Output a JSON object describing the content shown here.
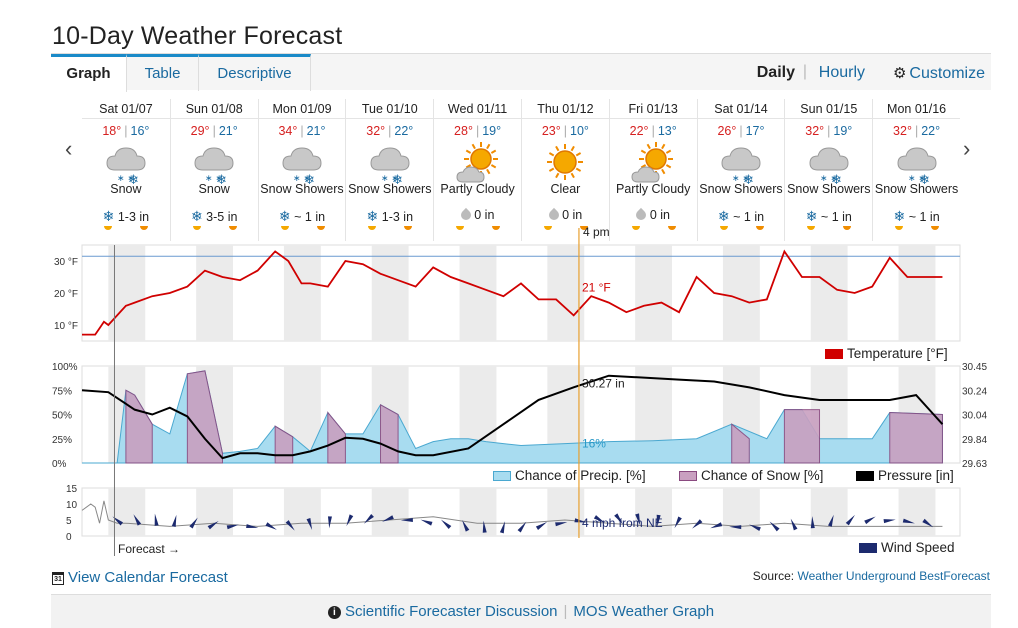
{
  "page": {
    "title": "10-Day Weather Forecast"
  },
  "tabs": [
    {
      "label": "Graph",
      "active": true
    },
    {
      "label": "Table",
      "active": false
    },
    {
      "label": "Descriptive",
      "active": false
    }
  ],
  "view_toggle": {
    "daily": "Daily",
    "separator": "|",
    "hourly": "Hourly",
    "customize": "Customize"
  },
  "days": [
    {
      "date": "Sat 01/07",
      "hi": "18°",
      "lo": "16°",
      "icon": "snow-icon",
      "cond": "Snow",
      "precip_icon": "snowflake-icon",
      "precip": "1-3 in"
    },
    {
      "date": "Sun 01/08",
      "hi": "29°",
      "lo": "21°",
      "icon": "snow-icon",
      "cond": "Snow",
      "precip_icon": "snowflake-icon",
      "precip": "3-5 in"
    },
    {
      "date": "Mon 01/09",
      "hi": "34°",
      "lo": "21°",
      "icon": "snow-icon",
      "cond": "Snow Showers",
      "precip_icon": "snowflake-icon",
      "precip": "~ 1 in"
    },
    {
      "date": "Tue 01/10",
      "hi": "32°",
      "lo": "22°",
      "icon": "snow-icon",
      "cond": "Snow Showers",
      "precip_icon": "snowflake-icon",
      "precip": "1-3 in"
    },
    {
      "date": "Wed 01/11",
      "hi": "28°",
      "lo": "19°",
      "icon": "partly-cloudy-icon",
      "cond": "Partly Cloudy",
      "precip_icon": "raindrop-icon",
      "precip": "0 in"
    },
    {
      "date": "Thu 01/12",
      "hi": "23°",
      "lo": "10°",
      "icon": "sun-icon",
      "cond": "Clear",
      "precip_icon": "raindrop-icon",
      "precip": "0 in"
    },
    {
      "date": "Fri 01/13",
      "hi": "22°",
      "lo": "13°",
      "icon": "partly-cloudy-icon",
      "cond": "Partly Cloudy",
      "precip_icon": "raindrop-icon",
      "precip": "0 in"
    },
    {
      "date": "Sat 01/14",
      "hi": "26°",
      "lo": "17°",
      "icon": "snow-icon",
      "cond": "Snow Showers",
      "precip_icon": "snowflake-icon",
      "precip": "~ 1 in"
    },
    {
      "date": "Sun 01/15",
      "hi": "32°",
      "lo": "19°",
      "icon": "snow-icon",
      "cond": "Snow Showers",
      "precip_icon": "snowflake-icon",
      "precip": "~ 1 in"
    },
    {
      "date": "Mon 01/16",
      "hi": "32°",
      "lo": "22°",
      "icon": "snow-icon",
      "cond": "Snow Showers",
      "precip_icon": "snowflake-icon",
      "precip": "~ 1 in"
    }
  ],
  "chart_data": [
    {
      "type": "line",
      "title": "",
      "x_unit": "day index (0 = Sat 01/07 00:00)",
      "ylim": [
        5,
        35
      ],
      "yticks": [
        "30 °F",
        "20 °F",
        "10 °F"
      ],
      "grid": true,
      "cursor": {
        "time": "4 pm",
        "label": "21 °F"
      },
      "series": [
        {
          "name": "Temperature [°F]",
          "color": "#d00000",
          "x": [
            0,
            0.15,
            0.2,
            0.25,
            0.3,
            0.4,
            0.5,
            0.6,
            0.8,
            1.0,
            1.2,
            1.4,
            1.6,
            1.8,
            2.0,
            2.2,
            2.35,
            2.5,
            2.6,
            2.8,
            3.0,
            3.2,
            3.4,
            3.6,
            3.8,
            4.0,
            4.2,
            4.4,
            4.6,
            4.8,
            5.0,
            5.2,
            5.4,
            5.6,
            5.8,
            6.0,
            6.2,
            6.4,
            6.6,
            6.8,
            7.0,
            7.2,
            7.4,
            7.6,
            7.8,
            8.0,
            8.2,
            8.4,
            8.6,
            8.8,
            9.0,
            9.2,
            9.4,
            9.6,
            9.8
          ],
          "y": [
            7,
            7,
            9,
            11,
            10,
            13,
            16,
            17,
            19,
            20,
            22,
            27,
            25,
            24,
            27,
            33,
            30,
            23,
            23,
            22,
            30,
            29,
            26,
            24,
            22,
            28,
            25,
            23,
            21,
            19,
            23,
            18,
            18,
            13,
            19,
            17,
            14,
            16,
            17,
            14,
            25,
            20,
            19,
            17,
            18,
            33,
            25,
            25,
            21,
            20,
            22,
            31,
            25,
            25,
            25
          ]
        }
      ]
    },
    {
      "type": "area",
      "title": "",
      "ylim": [
        0,
        100
      ],
      "yticks": [
        "100%",
        "75%",
        "50%",
        "25%",
        "0%"
      ],
      "y2ticks": [
        "30.45",
        "30.24",
        "30.04",
        "29.84",
        "29.63"
      ],
      "cursor": {
        "precip_label": "16%",
        "pressure_label": "30.27 in"
      },
      "series": [
        {
          "name": "Chance of Precip. [%]",
          "color": "#a8dcf0",
          "x": [
            0,
            0.4,
            0.5,
            0.6,
            0.8,
            1.0,
            1.2,
            1.4,
            1.6,
            1.8,
            2.0,
            2.2,
            2.4,
            2.6,
            2.8,
            3.0,
            3.2,
            3.4,
            3.6,
            3.8,
            4.0,
            4.2,
            4.4,
            4.6,
            4.8,
            5.0,
            5.5,
            6.0,
            6.5,
            7.0,
            7.4,
            7.8,
            8.0,
            8.2,
            8.4,
            8.6,
            8.8,
            9.0,
            9.2,
            9.8
          ],
          "y": [
            0,
            0,
            75,
            70,
            40,
            30,
            92,
            95,
            10,
            12,
            15,
            38,
            27,
            12,
            52,
            30,
            30,
            60,
            50,
            15,
            22,
            25,
            25,
            22,
            20,
            18,
            20,
            22,
            23,
            25,
            40,
            25,
            55,
            55,
            25,
            25,
            25,
            25,
            52,
            50
          ]
        },
        {
          "name": "Chance of Snow [%]",
          "color": "#c9a0c0",
          "x": [
            0.5,
            0.6,
            0.8,
            1.2,
            1.4,
            1.6,
            2.2,
            2.4,
            2.8,
            3.0,
            3.4,
            3.6,
            7.4,
            7.6,
            8.0,
            8.4,
            9.2,
            9.8
          ],
          "y": [
            75,
            70,
            40,
            92,
            95,
            10,
            38,
            27,
            52,
            30,
            60,
            50,
            40,
            25,
            55,
            55,
            52,
            50
          ]
        },
        {
          "name": "Pressure [in]",
          "color": "#000000",
          "x": [
            0,
            0.3,
            0.6,
            0.8,
            1.0,
            1.2,
            1.4,
            1.6,
            1.8,
            2.0,
            2.2,
            2.4,
            2.6,
            2.8,
            3.0,
            3.2,
            3.4,
            3.6,
            3.8,
            4.0,
            4.4,
            4.8,
            5.2,
            5.6,
            6.0,
            6.4,
            6.8,
            7.2,
            7.6,
            8.0,
            8.4,
            8.8,
            9.2,
            9.5,
            9.7,
            9.8
          ],
          "y": [
            75,
            73,
            55,
            50,
            57,
            48,
            25,
            5,
            10,
            10,
            8,
            8,
            12,
            18,
            26,
            25,
            20,
            12,
            8,
            8,
            15,
            40,
            65,
            78,
            90,
            88,
            86,
            84,
            78,
            70,
            65,
            65,
            65,
            70,
            50,
            40
          ]
        }
      ]
    },
    {
      "type": "line",
      "title": "",
      "ylim": [
        0,
        15
      ],
      "yticks": [
        "15",
        "10",
        "5",
        "0"
      ],
      "cursor": {
        "label": "4 mph from NE"
      },
      "series": [
        {
          "name": "Wind Speed",
          "color": "#1c2a6e",
          "x": [
            0,
            0.1,
            0.15,
            0.2,
            0.25,
            0.3,
            0.4,
            0.5,
            1.0,
            1.5,
            2.0,
            2.5,
            3.0,
            3.5,
            4.0,
            4.5,
            5.0,
            5.5,
            6.0,
            6.5,
            7.0,
            7.5,
            8.0,
            8.5,
            9.0,
            9.5,
            9.8
          ],
          "y": [
            8,
            10,
            9,
            4,
            11,
            5,
            4,
            4,
            3,
            4,
            3,
            4,
            4,
            5,
            6,
            4,
            4,
            5,
            4,
            3,
            4,
            3,
            4,
            3,
            3,
            3,
            3
          ]
        }
      ]
    }
  ],
  "labels": {
    "forecast": "Forecast →",
    "calendar_link": "View Calendar Forecast",
    "calendar_day": "31",
    "source_prefix": "Source: ",
    "source_link": "Weather Underground BestForecast",
    "scientific": "Scientific Forecaster Discussion",
    "footer_sep": "|",
    "mos": "MOS Weather Graph"
  },
  "colors": {
    "accent": "#1a6aa0",
    "temp": "#d00000",
    "precip": "#a8dcf0",
    "snow": "#c9a0c0",
    "wind": "#1c2a6e"
  }
}
